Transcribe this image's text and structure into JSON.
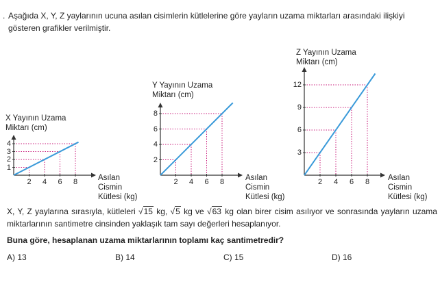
{
  "intro": {
    "bullet": ".",
    "text": "Aşağıda X, Y, Z yaylarının ucuna asılan cisimlerin kütlelerine göre yayların uzama miktarları arasındaki ilişkiyi gösteren grafikler verilmiştir."
  },
  "chart_data": [
    {
      "type": "line",
      "series": [
        {
          "name": "X",
          "x": [
            0,
            8.4
          ],
          "y": [
            0,
            4.2
          ]
        }
      ],
      "xlabel": "Asılan Cismin Kütlesi (kg)",
      "ylabel": "X Yayının Uzama Miktarı (cm)",
      "xticks": [
        "2",
        "4",
        "6",
        "8"
      ],
      "yticks": [
        "1",
        "2",
        "3",
        "4"
      ],
      "guides": [
        [
          2,
          1
        ],
        [
          4,
          2
        ],
        [
          6,
          3
        ],
        [
          8,
          4
        ]
      ]
    },
    {
      "type": "line",
      "series": [
        {
          "name": "Y",
          "x": [
            0,
            9.4
          ],
          "y": [
            0,
            9.4
          ]
        }
      ],
      "xlabel": "Asılan Cismin Kütlesi (kg)",
      "ylabel": "Y Yayının Uzama Miktarı (cm)",
      "xticks": [
        "2",
        "4",
        "6",
        "8"
      ],
      "yticks": [
        "2",
        "4",
        "6",
        "8"
      ],
      "guides": [
        [
          2,
          2
        ],
        [
          4,
          4
        ],
        [
          6,
          6
        ],
        [
          8,
          8
        ]
      ]
    },
    {
      "type": "line",
      "series": [
        {
          "name": "Z",
          "x": [
            0,
            9
          ],
          "y": [
            0,
            13.5
          ]
        }
      ],
      "xlabel": "Asılan Cismin Kütlesi (kg)",
      "ylabel": "Z Yayının Uzama Miktarı (cm)",
      "xticks": [
        "2",
        "4",
        "6",
        "8"
      ],
      "yticks": [
        "3",
        "6",
        "9",
        "12"
      ],
      "guides": [
        [
          2,
          3
        ],
        [
          4,
          6
        ],
        [
          6,
          9
        ],
        [
          8,
          12
        ]
      ]
    }
  ],
  "axis_titles": {
    "x_line1": "Asılan",
    "x_line2": "Cismin",
    "x_line3": "Kütlesi (kg)",
    "chart1_y1": "X Yayının Uzama",
    "chart1_y2": "Miktarı (cm)",
    "chart2_y1": "Y Yayının Uzama",
    "chart2_y2": "Miktarı (cm)",
    "chart3_y1": "Z Yayının Uzama",
    "chart3_y2": "Miktarı (cm)"
  },
  "problem": {
    "part1": "X, Y, Z yaylarına sırasıyla, kütleleri ",
    "r1": "15",
    "unit1": " kg, ",
    "r2": "5",
    "unit2": " kg ve ",
    "r3": "63",
    "part2": " kg olan birer cisim asılıyor ve sonrasında yayların uzama miktarlarının santimetre cinsinden yaklaşık tam sayı değerleri hesaplanıyor.",
    "question": "Buna göre, hesaplanan uzama miktarlarının toplamı kaç santimetredir?"
  },
  "options": [
    {
      "label": "A) 13"
    },
    {
      "label": "B) 14"
    },
    {
      "label": "C) 15"
    },
    {
      "label": "D) 16"
    }
  ],
  "colors": {
    "line": "#3a9ad9",
    "guide": "#c8197a",
    "axis": "#333333",
    "text": "#222222"
  }
}
